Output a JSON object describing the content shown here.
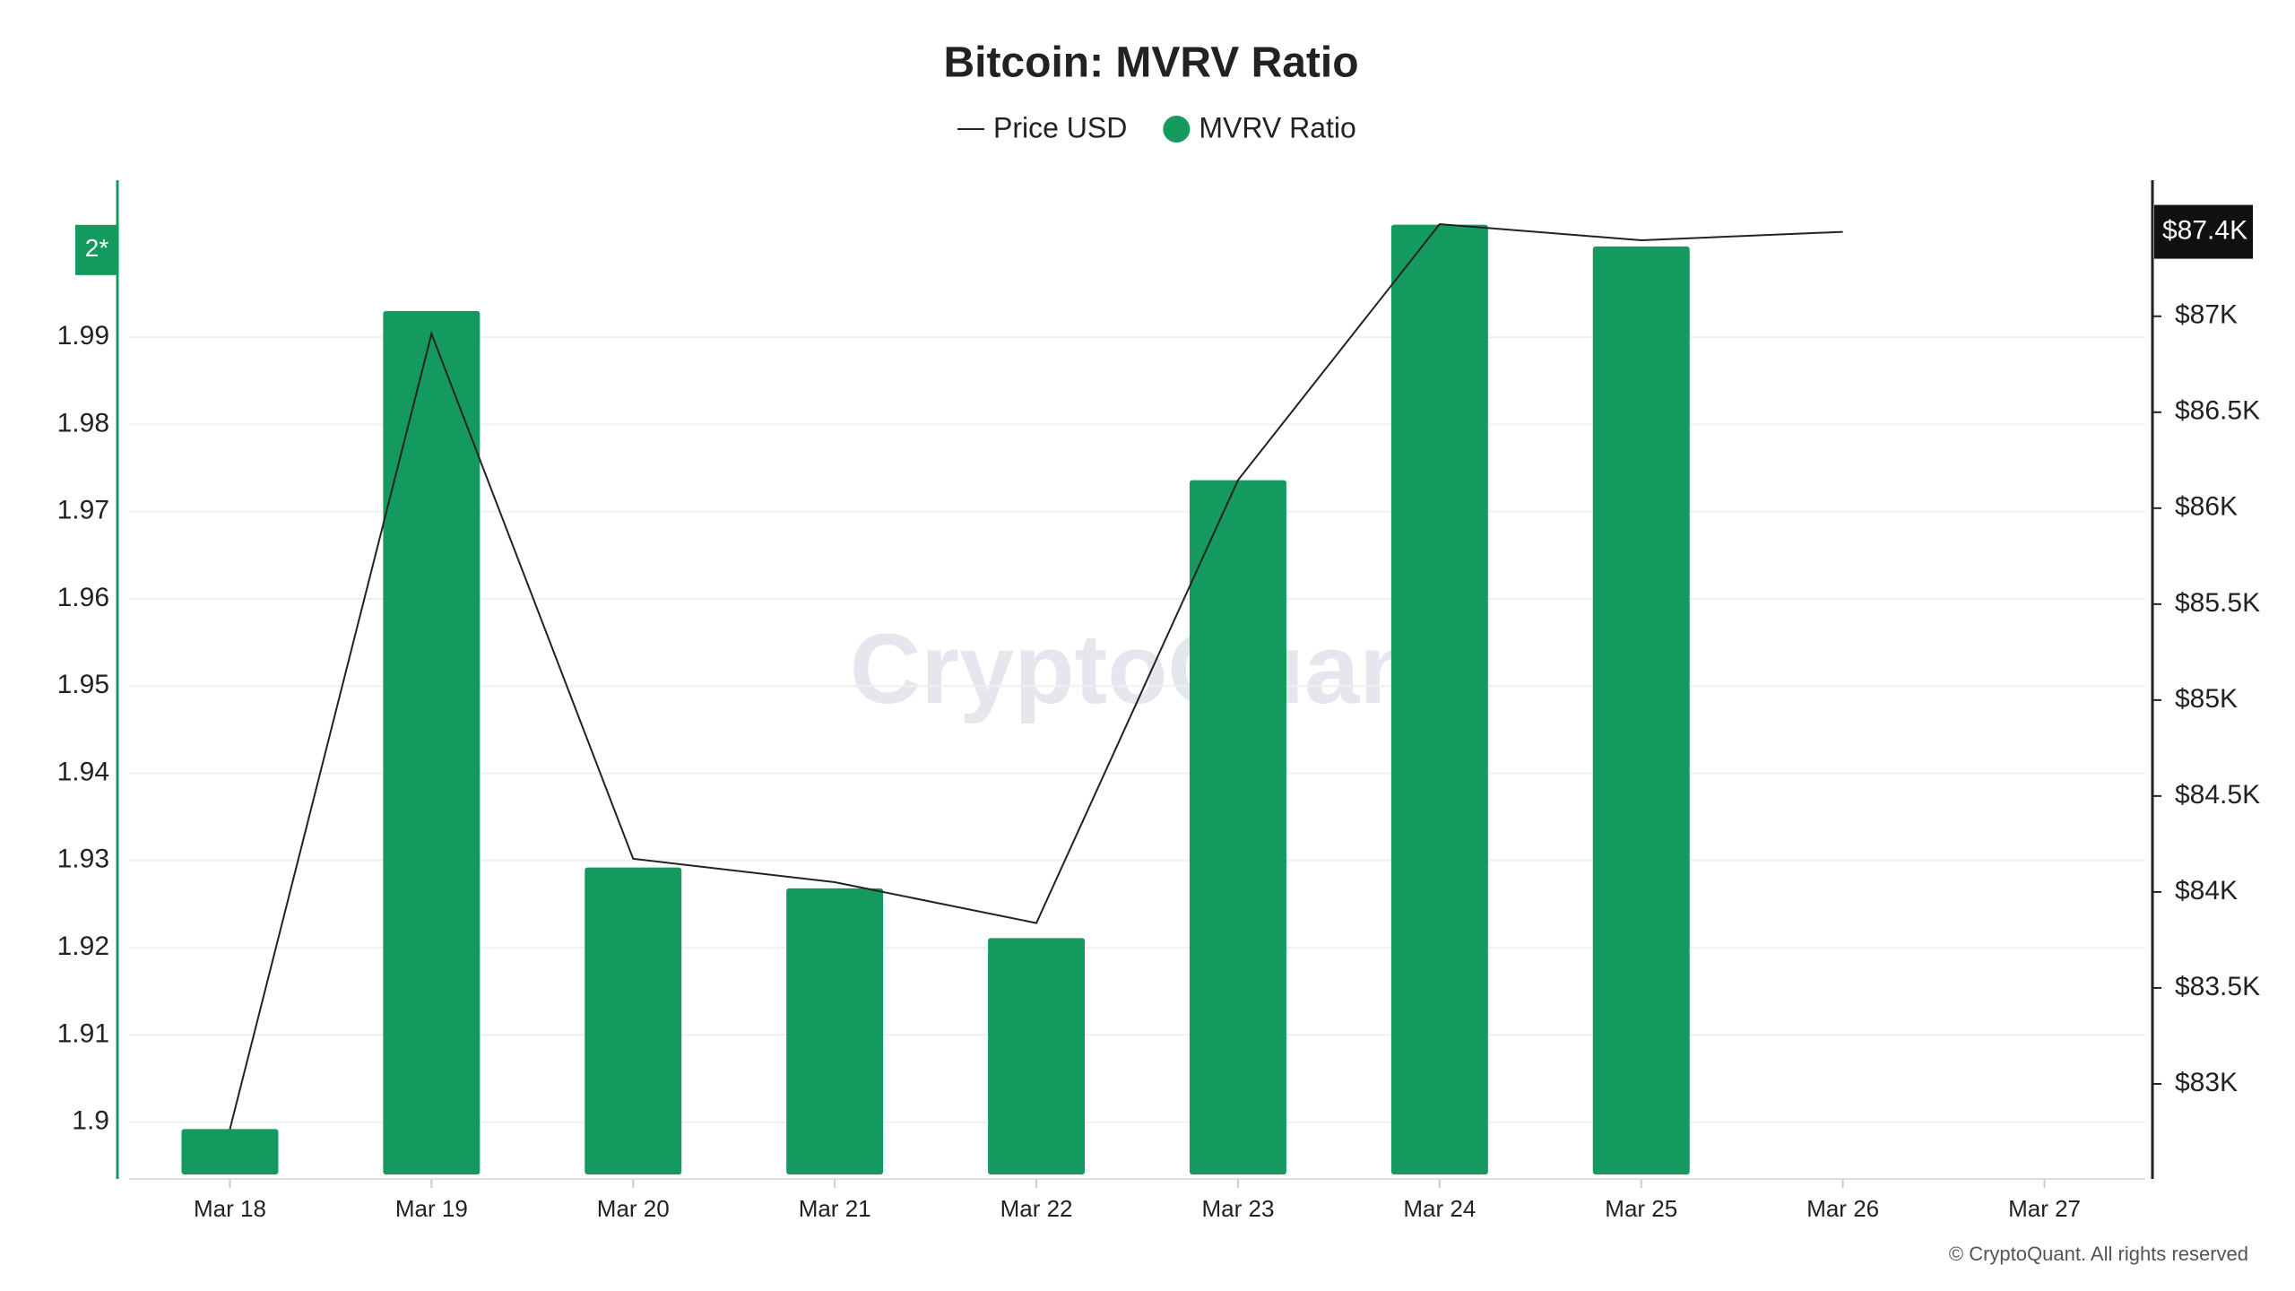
{
  "chart_data": {
    "type": "bar",
    "title": "Bitcoin: MVRV Ratio",
    "watermark": "CryptoQuant",
    "footer": "© CryptoQuant. All rights reserved",
    "categories": [
      "Mar 18",
      "Mar 19",
      "Mar 20",
      "Mar 21",
      "Mar 22",
      "Mar 23",
      "Mar 24",
      "Mar 25",
      "Mar 26",
      "Mar 27"
    ],
    "series": [
      {
        "name": "Price USD",
        "type": "line",
        "color": "#222222",
        "axis": "y2",
        "values": [
          82764,
          86909,
          84173,
          84051,
          83838,
          86146,
          87480,
          87396,
          87440,
          null
        ]
      },
      {
        "name": "MVRV Ratio",
        "type": "bar",
        "color": "#149a5f",
        "values": [
          1.8992,
          1.993,
          1.9292,
          1.9268,
          1.9211,
          1.9736,
          2.0029,
          2.0004,
          null,
          null
        ]
      }
    ],
    "ylim": [
      1.894,
      2.008
    ],
    "yticks": [
      1.9,
      1.91,
      1.92,
      1.93,
      1.94,
      1.95,
      1.96,
      1.97,
      1.98,
      1.99,
      {
        "value": 2,
        "label": "2*"
      }
    ],
    "y2lim": [
      82528,
      87709
    ],
    "y2ticks": [
      {
        "value": 83000,
        "label": "$83K"
      },
      {
        "value": 83500,
        "label": "$83.5K"
      },
      {
        "value": 84000,
        "label": "$84K"
      },
      {
        "value": 84500,
        "label": "$84.5K"
      },
      {
        "value": 85000,
        "label": "$85K"
      },
      {
        "value": 85500,
        "label": "$85.5K"
      },
      {
        "value": 86000,
        "label": "$86K"
      },
      {
        "value": 86500,
        "label": "$86.5K"
      },
      {
        "value": 87000,
        "label": "$87K"
      },
      {
        "value": 87440,
        "label": "$87.4K"
      }
    ],
    "grid": true
  }
}
